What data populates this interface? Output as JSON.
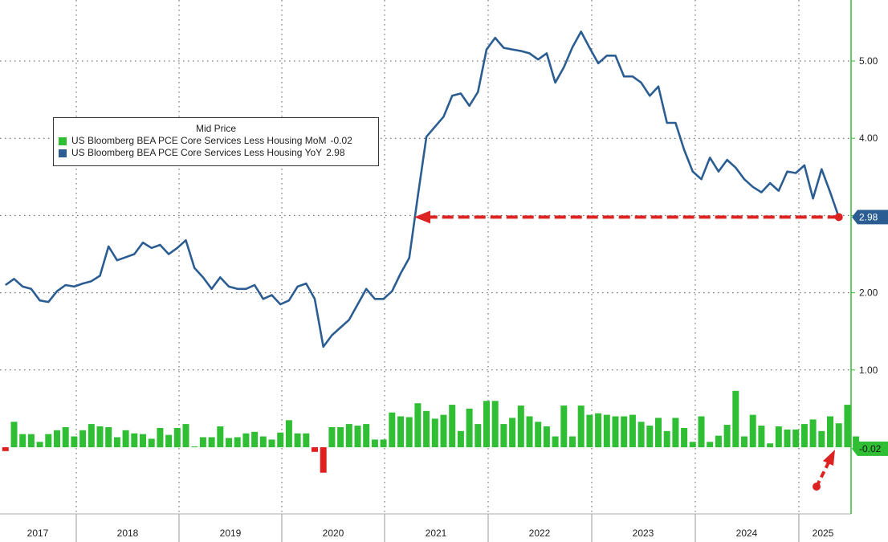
{
  "chart_data": {
    "type": "line",
    "legend": {
      "title": "Mid Price",
      "placement": "top-left",
      "entries": [
        {
          "label": "US Bloomberg BEA PCE Core Services Less Housing MoM",
          "value": "-0.02",
          "color": "#2fbe34"
        },
        {
          "label": "US Bloomberg BEA PCE Core Services Less Housing YoY",
          "value": "2.98",
          "color": "#2b5d92"
        }
      ]
    },
    "y_axis": {
      "side": "right",
      "ticks": [
        "1.00",
        "2.00",
        "3.00",
        "4.00",
        "5.00"
      ],
      "tick_values": [
        1,
        2,
        3,
        4,
        5
      ],
      "visible_tick_labels": [
        "1.00",
        "2.00",
        "4.00",
        "5.00"
      ],
      "range": [
        -0.9,
        5.8
      ],
      "grid": true
    },
    "x_axis": {
      "labels": [
        "2017",
        "2018",
        "2019",
        "2020",
        "2021",
        "2022",
        "2023",
        "2024",
        "2025"
      ],
      "start": "2016-10",
      "end": "2025-05"
    },
    "last_value_labels": [
      "2.98",
      "-0.02"
    ],
    "series": [
      {
        "name": "US Bloomberg BEA PCE Core Services Less Housing YoY",
        "type": "line",
        "color": "#2b5d92",
        "values": [
          2.1,
          2.18,
          2.08,
          2.05,
          1.9,
          1.88,
          2.02,
          2.1,
          2.08,
          2.12,
          2.15,
          2.22,
          2.6,
          2.42,
          2.46,
          2.5,
          2.65,
          2.58,
          2.62,
          2.5,
          2.58,
          2.68,
          2.32,
          2.2,
          2.05,
          2.2,
          2.08,
          2.05,
          2.05,
          2.1,
          1.92,
          1.97,
          1.85,
          1.9,
          2.08,
          2.12,
          1.92,
          1.3,
          1.45,
          1.55,
          1.65,
          1.85,
          2.05,
          1.92,
          1.92,
          2.02,
          2.25,
          2.45,
          3.25,
          4.02,
          4.15,
          4.28,
          4.55,
          4.58,
          4.42,
          4.6,
          5.15,
          5.3,
          5.17,
          5.15,
          5.13,
          5.1,
          5.02,
          5.1,
          4.72,
          4.92,
          5.18,
          5.38,
          5.17,
          4.97,
          5.07,
          5.07,
          4.8,
          4.8,
          4.72,
          4.55,
          4.67,
          4.2,
          4.2,
          3.85,
          3.57,
          3.47,
          3.75,
          3.57,
          3.72,
          3.62,
          3.47,
          3.37,
          3.3,
          3.42,
          3.32,
          3.57,
          3.55,
          3.65,
          3.22,
          3.6,
          3.3,
          2.98
        ]
      },
      {
        "name": "US Bloomberg BEA PCE Core Services Less Housing MoM",
        "type": "bar",
        "color": "#2fbe34",
        "negative_color": "#e02020",
        "values": [
          -0.05,
          0.33,
          0.17,
          0.17,
          0.07,
          0.17,
          0.22,
          0.26,
          0.14,
          0.22,
          0.3,
          0.27,
          0.26,
          0.13,
          0.22,
          0.18,
          0.17,
          0.11,
          0.25,
          0.16,
          0.25,
          0.3,
          0.01,
          0.13,
          0.13,
          0.27,
          0.12,
          0.13,
          0.18,
          0.2,
          0.14,
          0.1,
          0.19,
          0.35,
          0.18,
          0.18,
          -0.06,
          -0.33,
          0.26,
          0.26,
          0.3,
          0.28,
          0.3,
          0.1,
          0.1,
          0.45,
          0.4,
          0.39,
          0.57,
          0.47,
          0.37,
          0.42,
          0.55,
          0.21,
          0.5,
          0.3,
          0.6,
          0.6,
          0.3,
          0.38,
          0.54,
          0.4,
          0.33,
          0.27,
          0.14,
          0.54,
          0.14,
          0.54,
          0.42,
          0.44,
          0.42,
          0.4,
          0.4,
          0.42,
          0.33,
          0.28,
          0.38,
          0.21,
          0.38,
          0.25,
          0.07,
          0.4,
          0.07,
          0.15,
          0.29,
          0.73,
          0.14,
          0.42,
          0.28,
          0.05,
          0.27,
          0.23,
          0.23,
          0.3,
          0.36,
          0.21,
          0.4,
          0.31,
          0.55,
          0.14,
          -0.02
        ]
      }
    ]
  }
}
